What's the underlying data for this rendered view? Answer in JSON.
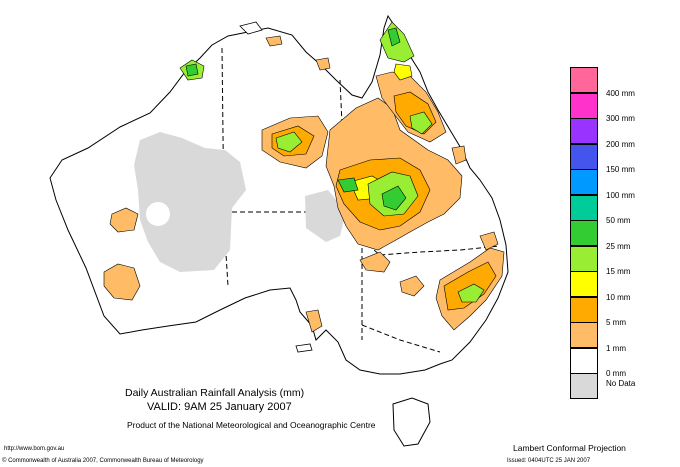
{
  "titles": {
    "line1": "Daily Australian Rainfall Analysis (mm)",
    "line2": "VALID: 9AM 25 January 2007",
    "line3": "Product of the National Meteorological and Oceanographic Centre"
  },
  "footer": {
    "url": "http://www.bom.gov.au",
    "copyright": "© Commonwealth of Australia 2007, Commonwealth Bureau of Meteorology",
    "projection": "Lambert Conformal Projection",
    "issued": "Issued: 0404UTC 25 JAN 2007"
  },
  "legend": {
    "swatches": [
      {
        "color": "#ff6699"
      },
      {
        "color": "#ff33cc"
      },
      {
        "color": "#9933ff"
      },
      {
        "color": "#4455ee"
      },
      {
        "color": "#0099ff"
      },
      {
        "color": "#00cc99"
      },
      {
        "color": "#33cc33"
      },
      {
        "color": "#99ee33"
      },
      {
        "color": "#ffff00"
      },
      {
        "color": "#ffaa00"
      },
      {
        "color": "#ffbb66"
      },
      {
        "color": "#ffffff"
      },
      {
        "color": "#d9d9d9"
      }
    ],
    "labels": [
      "400 mm",
      "300 mm",
      "200 mm",
      "150 mm",
      "100 mm",
      "50 mm",
      "25 mm",
      "15 mm",
      "10 mm",
      "5 mm",
      "1 mm",
      "0 mm",
      "No Data"
    ]
  }
}
